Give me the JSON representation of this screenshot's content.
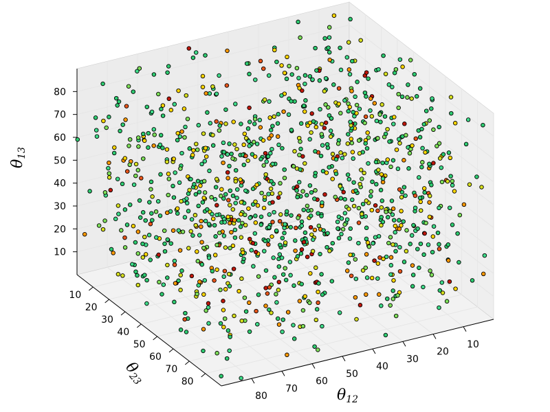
{
  "chart_data": {
    "type": "scatter",
    "projection": "3d",
    "title": "",
    "xlabel": "θ",
    "xlabel_sub": "12",
    "ylabel": "θ",
    "ylabel_sub": "23",
    "zlabel": "θ",
    "zlabel_sub": "13",
    "xlim": [
      0,
      90
    ],
    "ylim": [
      0,
      90
    ],
    "zlim": [
      0,
      90
    ],
    "x_ticks": [
      "10",
      "20",
      "30",
      "40",
      "50",
      "60",
      "70",
      "80"
    ],
    "y_ticks": [
      "10",
      "20",
      "30",
      "40",
      "50",
      "60",
      "70",
      "80"
    ],
    "z_ticks": [
      "10",
      "20",
      "30",
      "40",
      "50",
      "60",
      "70",
      "80"
    ],
    "grid": true,
    "legend": "none",
    "marker": "circle",
    "marker_edge_color": "#000000",
    "point_colors": [
      "#2ecc71",
      "#3fdc8a",
      "#7ee05a",
      "#d7e01e",
      "#ffd700",
      "#ff9900",
      "#e8561a",
      "#c0180c"
    ],
    "approx_point_count": 1200,
    "point_distribution": "points are scattered fairly uniformly through the 0–90 cube for all three angles; darker red points are fewer and mixed throughout",
    "pane_color": "#f2f2f2",
    "grid_color": "#e6e6e6"
  }
}
